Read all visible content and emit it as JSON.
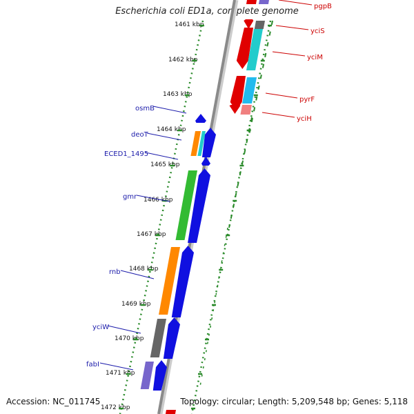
{
  "title": "Escherichia coli ED1a, complete genome",
  "footer": {
    "accession": "Accession: NC_011745",
    "topology": "Topology: circular; Length: 5,209,548 bp; Genes: 5,118"
  },
  "colors": {
    "backbone": "#8a8a8a",
    "tick": "#2a8a2a",
    "forward_label": "#1a1aaa",
    "reverse_label": "#cc0000"
  },
  "ticks": [
    "1461 kbp",
    "1462 kbp",
    "1463 kbp",
    "1464 kbp",
    "1465 kbp",
    "1466 kbp",
    "1467 kbp",
    "1468 kbp",
    "1469 kbp",
    "1470 kbp",
    "1471 kbp",
    "1472 kbp"
  ],
  "left_labels": [
    "osmB",
    "deoT",
    "ECED1_1495",
    "gmr",
    "rnb",
    "yciW",
    "fabI"
  ],
  "right_labels": [
    "pgpB",
    "yciS",
    "yciM",
    "pyrF",
    "yciH"
  ]
}
